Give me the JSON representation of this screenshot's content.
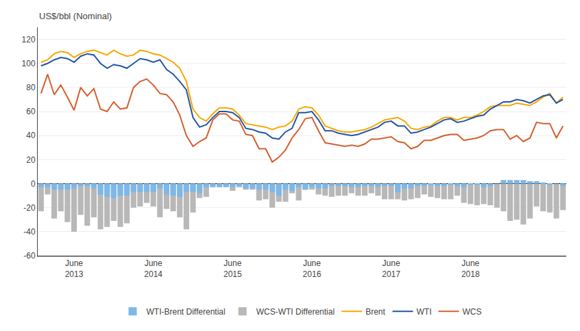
{
  "chart_data": {
    "type": "bar",
    "ylabel": "US$/bbl (Nominal)",
    "categories": [
      null,
      null,
      null,
      null,
      null,
      "June\n2013",
      null,
      null,
      null,
      null,
      null,
      null,
      null,
      null,
      null,
      null,
      null,
      "June\n2014",
      null,
      null,
      null,
      null,
      null,
      null,
      null,
      null,
      null,
      null,
      null,
      "June\n2015",
      null,
      null,
      null,
      null,
      null,
      null,
      null,
      null,
      null,
      null,
      null,
      "June\n2016",
      null,
      null,
      null,
      null,
      null,
      null,
      null,
      null,
      null,
      null,
      null,
      "June\n2017",
      null,
      null,
      null,
      null,
      null,
      null,
      null,
      null,
      null,
      null,
      null,
      "June\n2018",
      null,
      null,
      null,
      null,
      null,
      null,
      null,
      null,
      null,
      null,
      null,
      null,
      null,
      null
    ],
    "series": [
      {
        "name": "WTI-Brent Differential",
        "type": "bar",
        "color": "#7DB8E8",
        "values": [
          -3,
          -3,
          -5,
          -5,
          -5,
          -4,
          -2,
          -2,
          -4,
          -9,
          -11,
          -12,
          -10,
          -10,
          -7,
          -7,
          -7,
          -7,
          -4,
          -9,
          -10,
          -11,
          -7,
          -7,
          -8,
          -3,
          -3,
          -3,
          -3,
          -3,
          -2,
          -4,
          -4,
          -5,
          -5,
          -7,
          -10,
          -5,
          -6,
          -3,
          -5,
          -3,
          -4,
          -4,
          -2,
          -2,
          -2,
          -3,
          -3,
          -2,
          -2,
          -3,
          -2,
          -2,
          -7,
          -4,
          -4,
          -2,
          -2,
          -1,
          -2,
          -2,
          -1,
          -2,
          -3,
          -1,
          -1,
          -3,
          -2,
          0,
          3,
          3,
          3,
          3,
          2,
          2,
          1,
          -1,
          0,
          -2
        ]
      },
      {
        "name": "WCS-WTI Differential",
        "type": "bar",
        "color": "#B8B8B8",
        "values": [
          -23,
          -9,
          -29,
          -23,
          -32,
          -40,
          -26,
          -35,
          -28,
          -38,
          -36,
          -31,
          -36,
          -33,
          -20,
          -19,
          -16,
          -19,
          -28,
          -21,
          -23,
          -28,
          -38,
          -24,
          -12,
          -11,
          -2,
          -2,
          -2,
          -6,
          -3,
          -5,
          -5,
          -14,
          -13,
          -20,
          -15,
          -15,
          -8,
          -14,
          -5,
          -5,
          -9,
          -10,
          -11,
          -10,
          -10,
          -8,
          -10,
          -10,
          -8,
          -10,
          -13,
          -13,
          -13,
          -14,
          -13,
          -12,
          -9,
          -11,
          -12,
          -13,
          -13,
          -10,
          -16,
          -17,
          -18,
          -17,
          -18,
          -20,
          -23,
          -31,
          -30,
          -34,
          -29,
          -19,
          -23,
          -24,
          -29,
          -22
        ]
      },
      {
        "name": "Brent",
        "type": "line",
        "color": "#F5A800",
        "values": [
          101,
          103,
          108,
          110,
          109,
          105,
          108,
          110,
          111,
          109,
          107,
          111,
          108,
          106,
          107,
          111,
          110,
          108,
          107,
          104,
          101,
          96,
          85,
          62,
          55,
          52,
          58,
          63,
          63,
          62,
          57,
          50,
          49,
          48,
          47,
          45,
          47,
          48,
          52,
          62,
          64,
          63,
          57,
          48,
          46,
          44,
          43,
          43,
          44,
          45,
          47,
          50,
          53,
          54,
          55,
          52,
          46,
          45,
          47,
          48,
          52,
          55,
          55,
          53,
          55,
          55,
          57,
          60,
          64,
          65,
          65,
          65,
          67,
          66,
          65,
          68,
          72,
          75,
          67,
          72
        ]
      },
      {
        "name": "WTI",
        "type": "line",
        "color": "#2255A4",
        "values": [
          98,
          100,
          103,
          105,
          104,
          101,
          106,
          108,
          107,
          100,
          96,
          99,
          98,
          96,
          100,
          104,
          103,
          101,
          103,
          95,
          91,
          85,
          78,
          55,
          47,
          49,
          55,
          60,
          60,
          59,
          55,
          46,
          45,
          43,
          42,
          38,
          37,
          43,
          46,
          59,
          59,
          60,
          53,
          44,
          44,
          42,
          41,
          40,
          41,
          43,
          45,
          47,
          51,
          52,
          48,
          48,
          42,
          43,
          45,
          47,
          50,
          53,
          54,
          51,
          52,
          54,
          56,
          57,
          62,
          65,
          68,
          68,
          70,
          69,
          67,
          70,
          73,
          74,
          67,
          70
        ]
      },
      {
        "name": "WCS",
        "type": "line",
        "color": "#D45F2E",
        "values": [
          75,
          91,
          74,
          82,
          72,
          61,
          80,
          73,
          79,
          62,
          60,
          68,
          62,
          63,
          80,
          85,
          87,
          82,
          75,
          74,
          68,
          57,
          40,
          31,
          35,
          38,
          53,
          58,
          58,
          53,
          52,
          41,
          40,
          29,
          29,
          18,
          22,
          28,
          38,
          45,
          54,
          55,
          44,
          34,
          33,
          32,
          31,
          32,
          31,
          33,
          37,
          37,
          38,
          39,
          35,
          34,
          29,
          31,
          36,
          36,
          38,
          40,
          41,
          41,
          36,
          37,
          38,
          40,
          44,
          45,
          45,
          37,
          40,
          35,
          38,
          51,
          50,
          50,
          38,
          48
        ]
      }
    ],
    "ylim": [
      -60,
      130
    ],
    "yticks": [
      -60,
      -40,
      -20,
      0,
      20,
      40,
      60,
      80,
      100,
      120
    ],
    "grid": true,
    "legend": "bottom"
  }
}
